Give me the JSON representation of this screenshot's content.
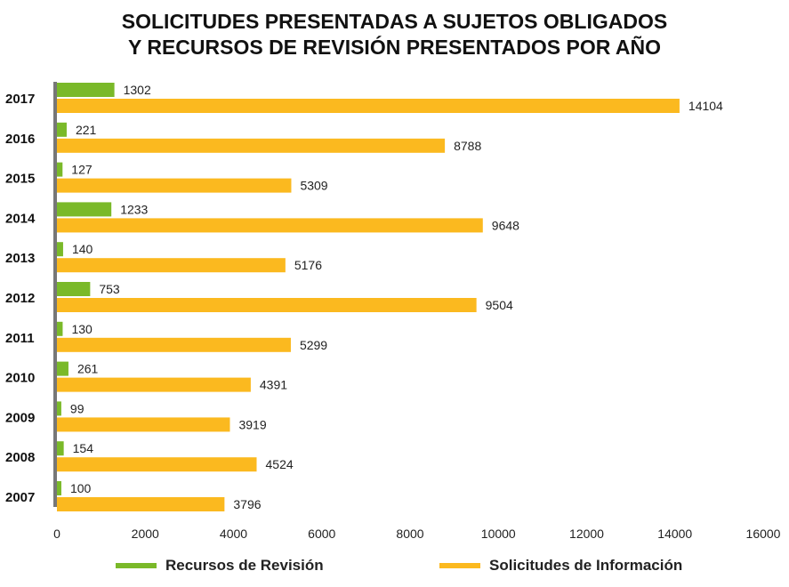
{
  "chart_data": {
    "type": "bar",
    "orientation": "horizontal",
    "title_lines": [
      "SOLICITUDES PRESENTADAS A SUJETOS OBLIGADOS",
      "Y RECURSOS DE REVISIÓN PRESENTADOS POR AÑO"
    ],
    "categories": [
      "2017",
      "2016",
      "2015",
      "2014",
      "2013",
      "2012",
      "2011",
      "2010",
      "2009",
      "2008",
      "2007"
    ],
    "series": [
      {
        "name": "Recursos de Revisión",
        "color": "#7ab929",
        "values": [
          1302,
          221,
          127,
          1233,
          140,
          753,
          130,
          261,
          99,
          154,
          100
        ]
      },
      {
        "name": "Solicitudes de Información",
        "color": "#fbb91f",
        "values": [
          14104,
          8788,
          5309,
          9648,
          5176,
          9504,
          5299,
          4391,
          3919,
          4524,
          3796
        ]
      }
    ],
    "x_ticks": [
      0,
      2000,
      4000,
      6000,
      8000,
      10000,
      12000,
      14000,
      16000
    ],
    "xlim": [
      0,
      16000
    ],
    "grid": false,
    "legend_position": "bottom"
  }
}
